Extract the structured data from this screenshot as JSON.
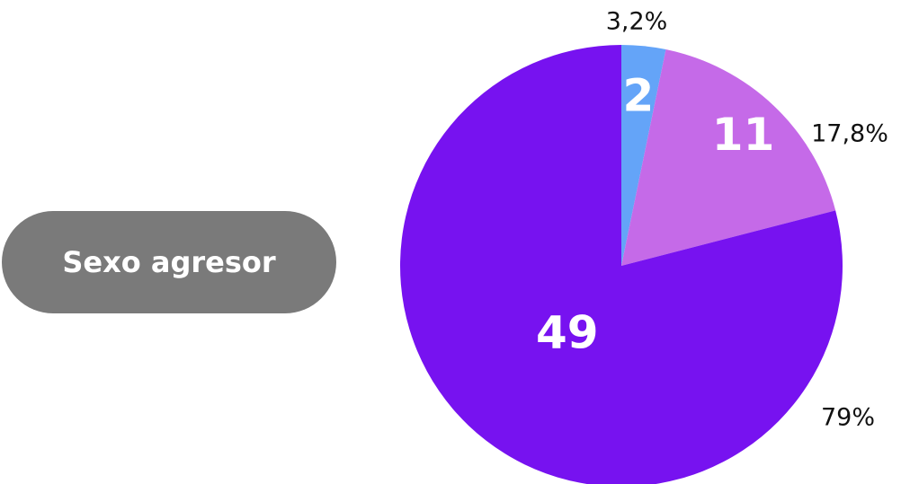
{
  "chart_data": {
    "type": "pie",
    "title": "Sexo agresor",
    "values": [
      2,
      11,
      49
    ],
    "percent_labels": [
      "3,2%",
      "17,8%",
      "79%"
    ],
    "colors": [
      "#64a4f8",
      "#c56ae8",
      "#7712f0"
    ]
  }
}
